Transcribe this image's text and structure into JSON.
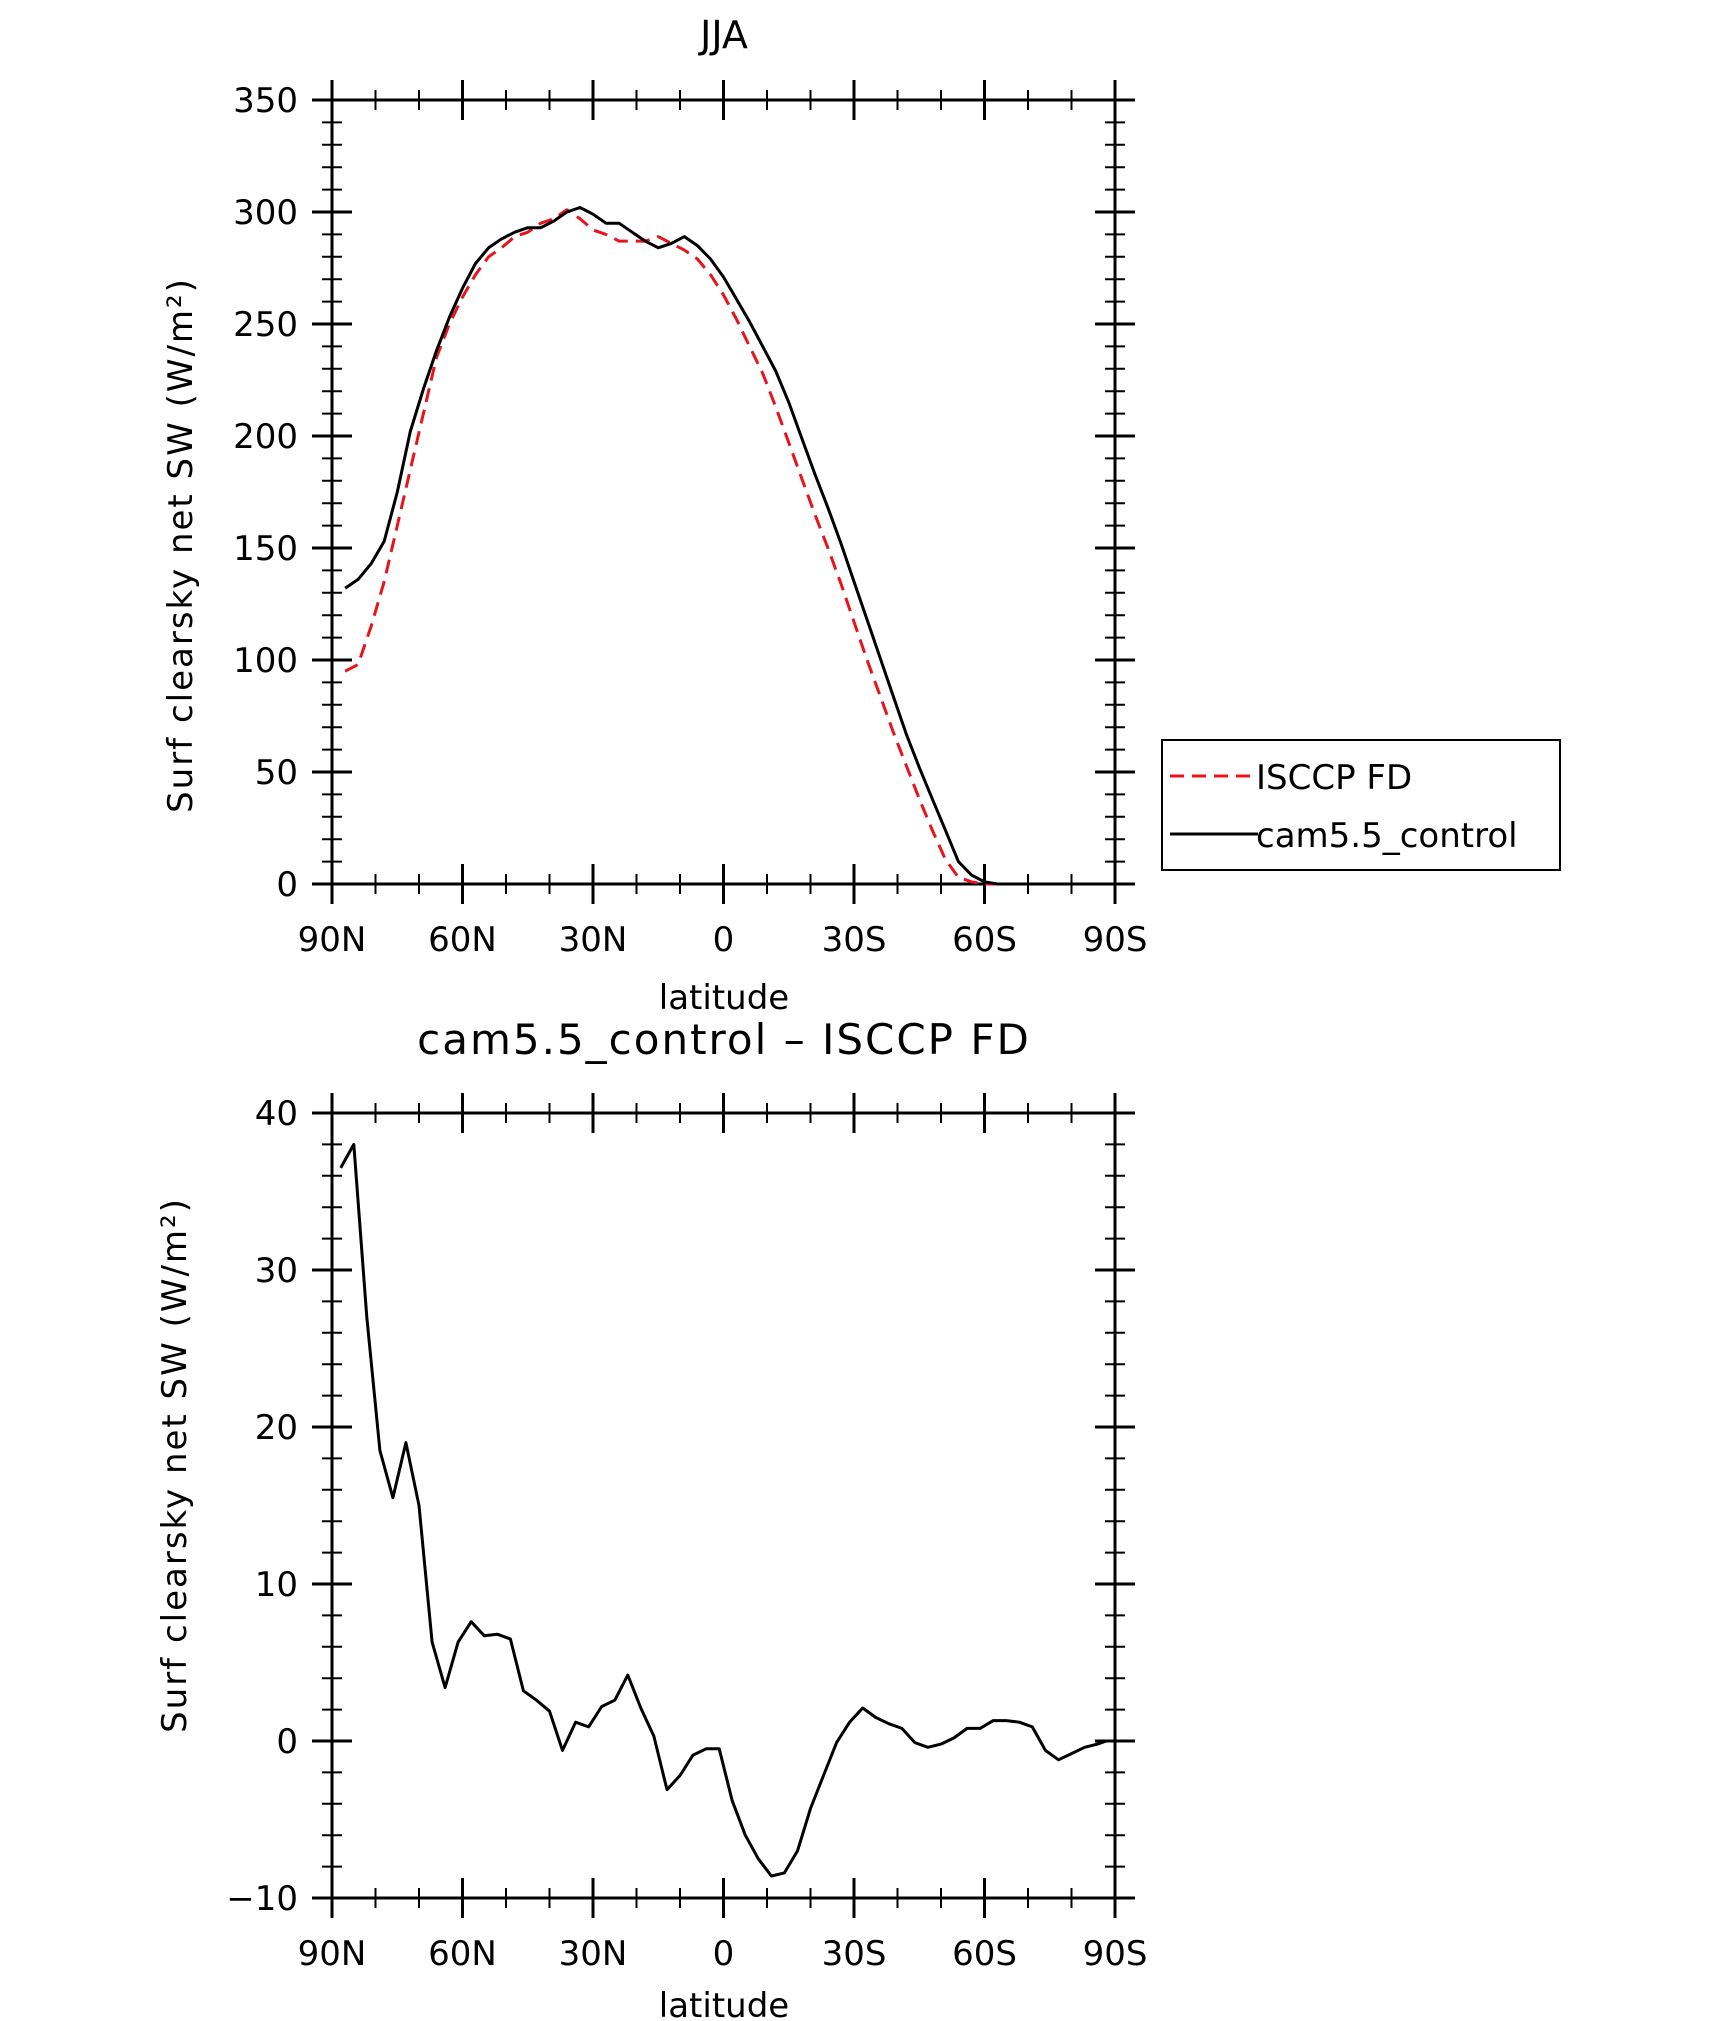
{
  "chart_data": [
    {
      "type": "line",
      "title": "JJA",
      "xlabel": "latitude",
      "ylabel": "Surf clearsky net SW (W/m²)",
      "xlim": [
        90,
        -90
      ],
      "ylim": [
        0,
        350
      ],
      "x_ticks": [
        90,
        60,
        30,
        0,
        -30,
        -60,
        -90
      ],
      "x_tick_labels": [
        "90N",
        "60N",
        "30N",
        "0",
        "30S",
        "60S",
        "90S"
      ],
      "y_ticks": [
        0,
        50,
        100,
        150,
        200,
        250,
        300,
        350
      ],
      "y_tick_labels": [
        "0",
        "50",
        "100",
        "150",
        "200",
        "250",
        "300",
        "350"
      ],
      "legend": {
        "placement": "right-outside",
        "entries": [
          {
            "name": "ISCCP FD",
            "color": "#e8141c",
            "style": "dashed"
          },
          {
            "name": "cam5.5_control",
            "color": "#000000",
            "style": "solid"
          }
        ]
      },
      "series": [
        {
          "name": "ISCCP FD",
          "color": "#e8141c",
          "style": "dashed",
          "x": [
            87,
            84,
            81,
            78,
            75,
            72,
            69,
            66,
            63,
            60,
            57,
            54,
            51,
            48,
            45,
            42,
            39,
            36,
            33,
            30,
            27,
            24,
            21,
            18,
            15,
            12,
            9,
            6,
            3,
            0,
            -3,
            -6,
            -9,
            -12,
            -15,
            -18,
            -21,
            -24,
            -27,
            -30,
            -33,
            -36,
            -39,
            -42,
            -45,
            -48,
            -51,
            -54,
            -57,
            -60,
            -63,
            -66,
            -69,
            -72,
            -75,
            -78,
            -81,
            -84,
            -87
          ],
          "y": [
            95,
            98,
            115,
            135,
            160,
            185,
            210,
            235,
            250,
            262,
            272,
            280,
            284,
            289,
            291,
            295,
            297,
            301,
            297,
            292,
            290,
            287,
            287,
            287,
            289,
            286,
            283,
            279,
            272,
            263,
            252,
            240,
            228,
            213,
            197,
            181,
            165,
            150,
            134,
            117,
            100,
            84,
            68,
            53,
            38,
            24,
            11,
            3,
            1,
            0,
            0,
            0,
            0,
            0,
            0,
            0,
            0,
            0,
            0
          ]
        },
        {
          "name": "cam5.5_control",
          "color": "#000000",
          "style": "solid",
          "x": [
            87,
            84,
            81,
            78,
            75,
            72,
            69,
            66,
            63,
            60,
            57,
            54,
            51,
            48,
            45,
            42,
            39,
            36,
            33,
            30,
            27,
            24,
            21,
            18,
            15,
            12,
            9,
            6,
            3,
            0,
            -3,
            -6,
            -9,
            -12,
            -15,
            -18,
            -21,
            -24,
            -27,
            -30,
            -33,
            -36,
            -39,
            -42,
            -45,
            -48,
            -51,
            -54,
            -57,
            -60,
            -63,
            -66,
            -69,
            -72,
            -75,
            -78,
            -81,
            -84,
            -87
          ],
          "y": [
            132,
            136,
            143,
            153,
            175,
            202,
            221,
            238,
            253,
            266,
            277,
            284,
            288,
            291,
            293,
            293,
            296,
            300,
            302,
            299,
            295,
            295,
            291,
            287,
            284,
            286,
            289,
            285,
            279,
            271,
            261,
            251,
            240,
            229,
            215,
            199,
            183,
            168,
            152,
            135,
            118,
            101,
            84,
            67,
            52,
            38,
            24,
            10,
            4,
            1,
            0,
            0,
            0,
            0,
            0,
            0,
            0,
            0,
            0
          ]
        }
      ]
    },
    {
      "type": "line",
      "title": "cam5.5_control – ISCCP FD",
      "xlabel": "latitude",
      "ylabel": "Surf clearsky net SW (W/m²)",
      "xlim": [
        90,
        -90
      ],
      "ylim": [
        -10,
        40
      ],
      "x_ticks": [
        90,
        60,
        30,
        0,
        -30,
        -60,
        -90
      ],
      "x_tick_labels": [
        "90N",
        "60N",
        "30N",
        "0",
        "30S",
        "60S",
        "90S"
      ],
      "y_ticks": [
        -10,
        0,
        10,
        20,
        30,
        40
      ],
      "y_tick_labels": [
        "−10",
        "0",
        "10",
        "20",
        "30",
        "40"
      ],
      "series": [
        {
          "name": "cam5.5_control - ISCCP FD",
          "color": "#000000",
          "style": "solid",
          "x": [
            88,
            85,
            82,
            79,
            76,
            73,
            70,
            67,
            64,
            61,
            58,
            55,
            52,
            49,
            46,
            43,
            40,
            37,
            34,
            31,
            28,
            25,
            22,
            19,
            16,
            13,
            10,
            7,
            4,
            1,
            -2,
            -5,
            -8,
            -11,
            -14,
            -17,
            -20,
            -23,
            -26,
            -29,
            -32,
            -35,
            -38,
            -41,
            -44,
            -47,
            -50,
            -53,
            -56,
            -59,
            -62,
            -65,
            -68,
            -71,
            -74,
            -77,
            -80,
            -83,
            -86,
            -88
          ],
          "y": [
            36.5,
            38,
            27,
            18.5,
            15.5,
            19,
            15,
            6.3,
            3.4,
            6.3,
            7.6,
            6.7,
            6.8,
            6.5,
            3.2,
            2.6,
            1.9,
            -0.6,
            1.2,
            0.9,
            2.2,
            2.6,
            4.2,
            2.1,
            0.3,
            -3.1,
            -2.2,
            -0.9,
            -0.5,
            -0.5,
            -3.8,
            -6.0,
            -7.5,
            -8.6,
            -8.4,
            -7.0,
            -4.3,
            -2.2,
            -0.1,
            1.2,
            2.1,
            1.5,
            1.1,
            0.8,
            -0.1,
            -0.4,
            -0.2,
            0.2,
            0.8,
            0.8,
            1.3,
            1.3,
            1.2,
            0.9,
            -0.6,
            -1.2,
            -0.8,
            -0.4,
            -0.2,
            0.0
          ]
        }
      ]
    }
  ]
}
